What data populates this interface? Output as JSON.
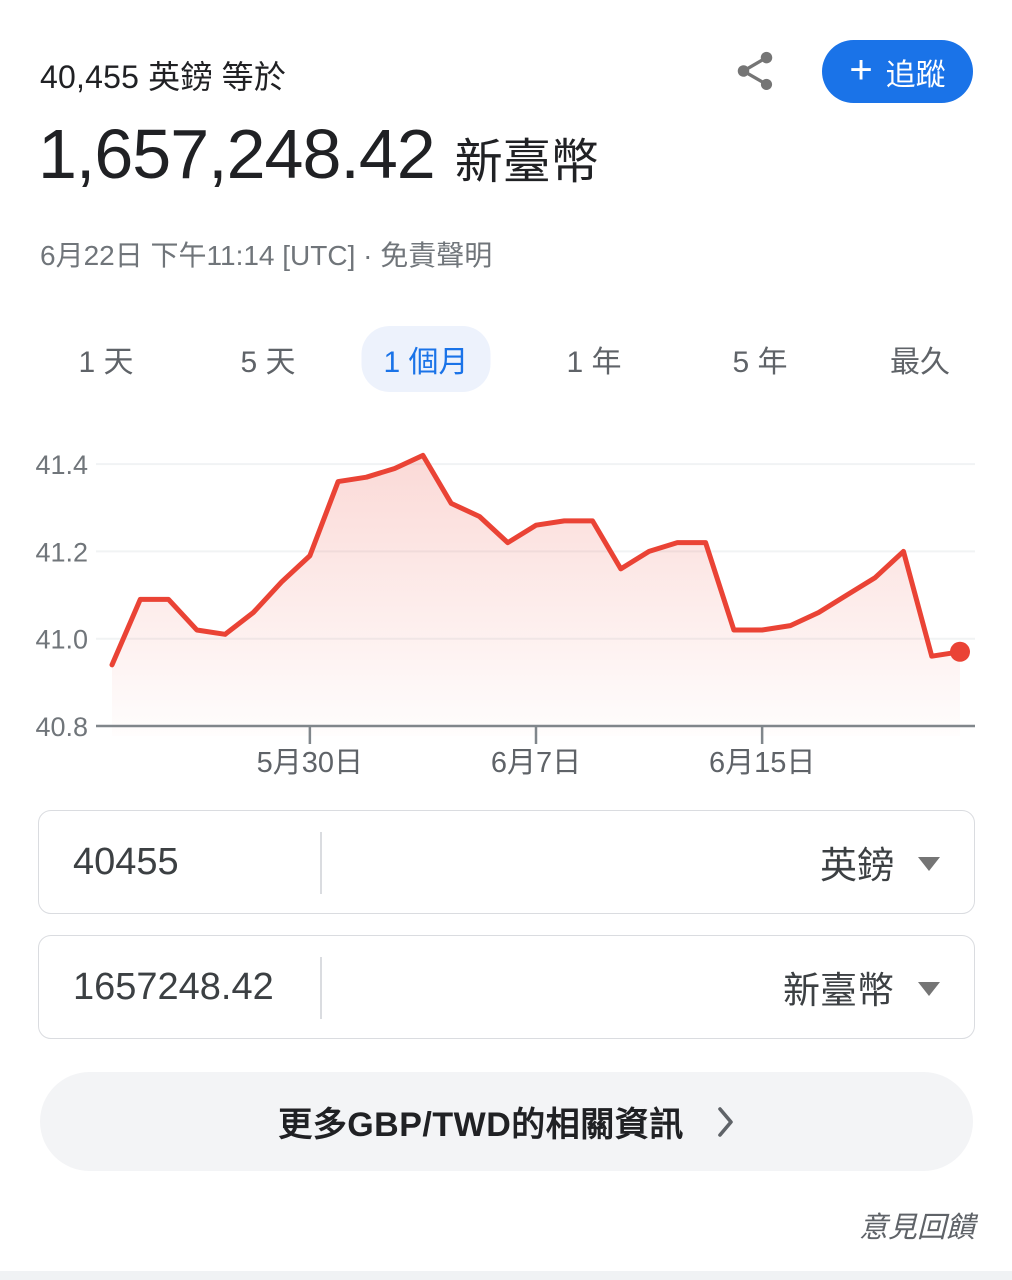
{
  "header": {
    "subtitle": "40,455 英鎊 等於",
    "amount": "1,657,248.42",
    "amount_currency": "新臺幣",
    "timestamp": "6月22日 下午11:14 [UTC] · ",
    "disclaimer_label": "免責聲明",
    "follow_button": {
      "plus": "+",
      "label": "追蹤",
      "color": "#1a73e8"
    }
  },
  "range_tabs": [
    {
      "label": "1 天",
      "selected": false
    },
    {
      "label": "5 天",
      "selected": false
    },
    {
      "label": "1 個月",
      "selected": true
    },
    {
      "label": "1 年",
      "selected": false
    },
    {
      "label": "5 年",
      "selected": false
    },
    {
      "label": "最久",
      "selected": false
    }
  ],
  "chart_data": {
    "type": "line",
    "series_name": "GBP/TWD",
    "x": [
      "5月23日",
      "5月24日",
      "5月25日",
      "5月26日",
      "5月27日",
      "5月28日",
      "5月29日",
      "5月30日",
      "5月31日",
      "6月1日",
      "6月2日",
      "6月3日",
      "6月4日",
      "6月5日",
      "6月6日",
      "6月7日",
      "6月8日",
      "6月9日",
      "6月10日",
      "6月11日",
      "6月12日",
      "6月13日",
      "6月14日",
      "6月15日",
      "6月16日",
      "6月17日",
      "6月18日",
      "6月19日",
      "6月20日",
      "6月21日",
      "6月22日"
    ],
    "values": [
      40.94,
      41.09,
      41.09,
      41.02,
      41.01,
      41.06,
      41.13,
      41.19,
      41.36,
      41.37,
      41.39,
      41.42,
      41.31,
      41.28,
      41.22,
      41.26,
      41.27,
      41.27,
      41.16,
      41.2,
      41.22,
      41.22,
      41.02,
      41.02,
      41.03,
      41.06,
      41.1,
      41.14,
      41.2,
      40.96,
      40.97
    ],
    "ylim": [
      40.8,
      41.46
    ],
    "yticks": [
      41.4,
      41.2,
      41.0,
      40.8
    ],
    "ytick_labels": [
      "41.4",
      "41.2",
      "41.0",
      "40.8"
    ],
    "xtick_labels": [
      "5月30日",
      "6月7日",
      "6月15日"
    ],
    "xtick_indices": [
      7,
      15,
      23
    ],
    "line_color": "#ea4335",
    "grid": true,
    "legend": false,
    "end_dot": true
  },
  "converter": {
    "from": {
      "value": "40455",
      "currency_label": "英鎊"
    },
    "to": {
      "value": "1657248.42",
      "currency_label": "新臺幣"
    }
  },
  "footer": {
    "more_info_label": "更多GBP/TWD的相關資訊",
    "feedback_label": "意見回饋"
  }
}
